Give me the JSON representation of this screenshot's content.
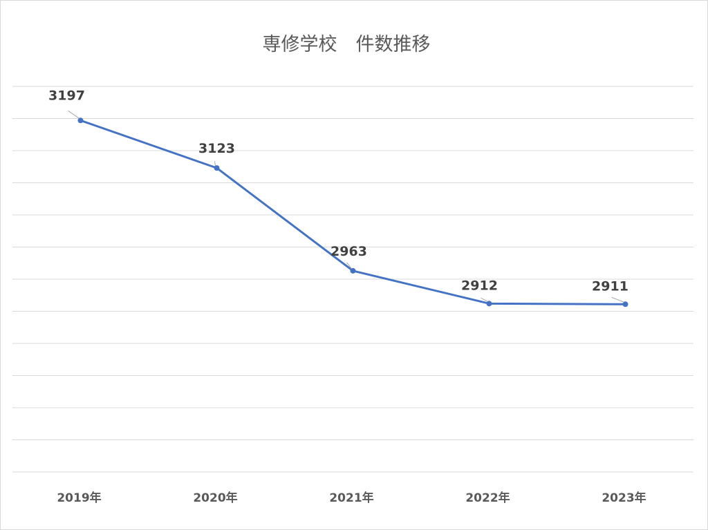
{
  "chart_data": {
    "type": "line",
    "title": "専修学校　件数推移",
    "categories": [
      "2019年",
      "2020年",
      "2021年",
      "2022年",
      "2023年"
    ],
    "series": [
      {
        "values": [
          3197,
          3123,
          2963,
          2912,
          2911
        ],
        "color": "#4472c4"
      }
    ],
    "data_labels": [
      "3197",
      "3123",
      "2963",
      "2912",
      "2911"
    ],
    "ylim": [
      2650,
      3250
    ],
    "grid": true,
    "legend": "none"
  }
}
